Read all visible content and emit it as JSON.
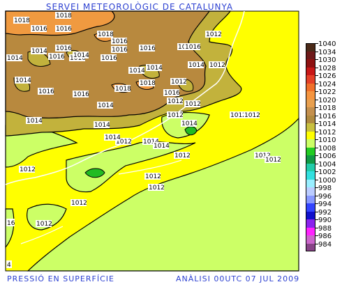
{
  "title": "SERVEI METEOROLÒGIC DE CATALUNYA",
  "footer_left": "PRESSIÓ EN SUPERFÍCIE",
  "footer_right": "ANÀLISI 00UTC 07 JUL 2009",
  "corner_labels": [
    "16",
    "4"
  ],
  "isobar_labels": [
    "1018",
    "1018",
    "1016",
    "1016",
    "1018",
    "1016",
    "1014",
    "1016",
    "1016",
    "1014",
    "1016",
    "1016",
    "1014",
    "1016",
    "1016",
    "1016",
    "1016",
    "1014",
    "1014",
    "1012",
    "1014",
    "1016",
    "1016",
    "1018",
    "1018",
    "1016",
    "1014",
    "1012",
    "1014",
    "1014",
    "1012",
    "1014",
    "1014",
    "1012",
    "1012",
    "1012",
    "1012",
    "1014",
    "1012",
    "1012",
    "1012",
    "1012",
    "1012",
    "1012",
    "1012",
    "1012",
    "1012",
    "1012",
    "1014",
    "1014"
  ],
  "legend": [
    {
      "label": "1040",
      "color": "#4b2a18"
    },
    {
      "label": "1034",
      "color": "#6e1a1a"
    },
    {
      "label": "1030",
      "color": "#8e1212"
    },
    {
      "label": "1028",
      "color": "#c81818"
    },
    {
      "label": "1026",
      "color": "#e44028"
    },
    {
      "label": "1024",
      "color": "#f0702a"
    },
    {
      "label": "1022",
      "color": "#f59540"
    },
    {
      "label": "1020",
      "color": "#e8a050"
    },
    {
      "label": "1018",
      "color": "#c4904e"
    },
    {
      "label": "1016",
      "color": "#b08a40"
    },
    {
      "label": "1014",
      "color": "#c8c040"
    },
    {
      "label": "1012",
      "color": "#ffff00"
    },
    {
      "label": "1010",
      "color": "#ccff66"
    },
    {
      "label": "1008",
      "color": "#22cc22"
    },
    {
      "label": "1006",
      "color": "#119944"
    },
    {
      "label": "1004",
      "color": "#22ccaa"
    },
    {
      "label": "1002",
      "color": "#33e0e0"
    },
    {
      "label": "1000",
      "color": "#99eeff"
    },
    {
      "label": "998",
      "color": "#bbccff"
    },
    {
      "label": "996",
      "color": "#8899ff"
    },
    {
      "label": "994",
      "color": "#3344ff"
    },
    {
      "label": "992",
      "color": "#1111cc"
    },
    {
      "label": "990",
      "color": "#8a22ee"
    },
    {
      "label": "988",
      "color": "#ff22ff"
    },
    {
      "label": "986",
      "color": "#cc66cc"
    },
    {
      "label": "984",
      "color": "#884488"
    }
  ],
  "colors": {
    "high_1018": "#f09a40",
    "band_1016": "#b8893e",
    "band_1014": "#c2b23c",
    "band_1012": "#ffff00",
    "band_1010": "#ccff66",
    "band_1008": "#22bb22",
    "coast": "#ffffff"
  }
}
